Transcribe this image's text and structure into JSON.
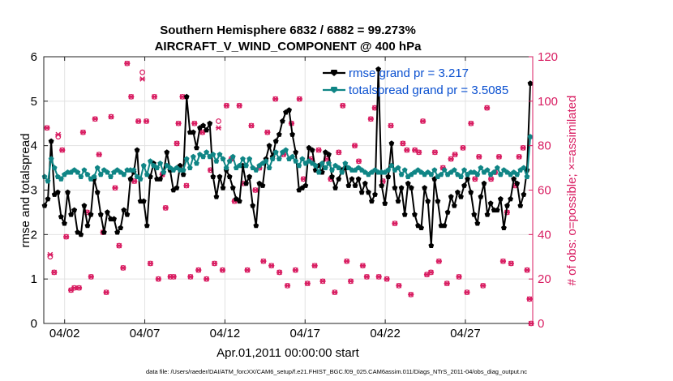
{
  "chart_data": {
    "type": "line",
    "title": "Southern Hemisphere 6832 / 6882 = 99.273%",
    "subtitle": "AIRCRAFT_V_WIND_COMPONENT @ 400 hPa",
    "xlabel": "Apr.01,2011 00:00:00 start",
    "ylabel": "rmse and totalspread",
    "y2label": "# of obs: o=possible; ×=assimilated",
    "footnote": "data file: /Users/raeder/DAI/ATM_forcXX/CAM6_setup/f.e21.FHIST_BGC.f09_025.CAM6assim.011/Diags_NTrS_2011-04/obs_diag_output.nc",
    "xlim": [
      0.7,
      31.2
    ],
    "ylim": [
      0,
      6
    ],
    "y2lim": [
      0,
      120
    ],
    "x_ticks": [
      2,
      7,
      12,
      17,
      22,
      27
    ],
    "x_tick_labels": [
      "04/02",
      "04/07",
      "04/12",
      "04/17",
      "04/22",
      "04/27"
    ],
    "y_ticks": [
      0,
      1,
      2,
      3,
      4,
      5,
      6
    ],
    "y_tick_labels": [
      "0",
      "1",
      "2",
      "3",
      "4",
      "5",
      "6"
    ],
    "y2_ticks": [
      0,
      20,
      40,
      60,
      80,
      100,
      120
    ],
    "y2_tick_labels": [
      "0",
      "20",
      "40",
      "60",
      "80",
      "100",
      "120"
    ],
    "grid": true,
    "colors": {
      "rmse": "#000000",
      "spread": "#0f8585",
      "obs": "#d81b60",
      "legend_text": "#0a50d0"
    },
    "series": [
      {
        "name": "rmse grand pr = 3.217",
        "values": [
          2.65,
          2.8,
          4.1,
          2.9,
          2.95,
          2.4,
          2.25,
          2.95,
          2.45,
          2.55,
          2.05,
          2.0,
          2.65,
          2.2,
          2.45,
          3.25,
          2.95,
          2.45,
          2.05,
          2.5,
          2.35,
          2.35,
          2.05,
          2.15,
          2.55,
          2.45,
          3.25,
          3.4,
          3.9,
          2.75,
          2.75,
          2.2,
          3.3,
          3.6,
          3.25,
          3.25,
          3.4,
          3.85,
          3.45,
          3.0,
          3.05,
          3.55,
          3.35,
          5.1,
          4.3,
          4.3,
          3.95,
          4.4,
          4.45,
          4.35,
          4.5,
          3.3,
          2.85,
          3.3,
          3.05,
          3.45,
          3.3,
          3.05,
          2.8,
          2.75,
          3.55,
          3.15,
          3.3,
          2.65,
          2.2,
          3.15,
          3.1,
          3.7,
          4.0,
          3.75,
          4.1,
          4.25,
          4.55,
          4.75,
          4.8,
          4.25,
          3.85,
          3.0,
          3.05,
          3.1,
          3.95,
          3.9,
          3.45,
          3.55,
          3.4,
          3.85,
          3.8,
          3.3,
          3.05,
          3.25,
          3.45,
          3.5,
          3.1,
          3.25,
          3.1,
          3.25,
          2.95,
          3.15,
          2.95,
          2.75,
          2.9,
          5.72,
          3.1,
          2.7,
          3.3,
          4.05,
          3.05,
          2.75,
          3.05,
          2.45,
          3.15,
          3.05,
          2.45,
          2.2,
          2.15,
          3.05,
          2.75,
          1.75,
          3.25,
          2.75,
          2.2,
          2.2,
          2.5,
          2.85,
          2.65,
          2.95,
          2.85,
          3.1,
          3.25,
          2.95,
          2.45,
          2.25,
          2.85,
          3.15,
          2.45,
          2.7,
          2.55,
          2.55,
          2.8,
          2.15,
          2.65,
          2.8,
          3.25,
          3.15,
          2.65,
          2.9,
          3.45,
          5.4
        ]
      },
      {
        "name": "totalspread grand pr = 3.5085",
        "values": [
          3.3,
          3.2,
          3.7,
          3.5,
          3.3,
          3.25,
          3.35,
          3.4,
          3.4,
          3.45,
          3.4,
          3.3,
          3.45,
          3.35,
          3.25,
          3.3,
          3.5,
          3.35,
          3.45,
          3.4,
          3.3,
          3.4,
          3.45,
          3.4,
          3.35,
          3.45,
          3.45,
          3.45,
          3.3,
          3.25,
          3.55,
          3.35,
          3.65,
          3.55,
          3.5,
          3.6,
          3.4,
          3.55,
          3.5,
          3.45,
          3.5,
          3.45,
          3.45,
          3.7,
          3.5,
          3.75,
          3.6,
          3.8,
          3.75,
          3.85,
          3.75,
          3.8,
          3.65,
          3.8,
          3.7,
          3.5,
          3.65,
          3.75,
          3.5,
          3.55,
          3.7,
          3.55,
          3.7,
          3.5,
          3.45,
          3.55,
          3.6,
          3.65,
          3.5,
          3.7,
          3.85,
          3.7,
          3.85,
          3.9,
          3.7,
          3.75,
          3.65,
          3.55,
          3.7,
          3.6,
          3.65,
          3.6,
          3.55,
          3.4,
          3.6,
          3.5,
          3.6,
          3.45,
          3.55,
          3.5,
          3.4,
          3.6,
          3.5,
          3.45,
          3.45,
          3.5,
          3.45,
          3.4,
          3.35,
          3.4,
          3.45,
          3.4,
          3.4,
          3.4,
          3.45,
          3.55,
          3.45,
          3.5,
          3.35,
          3.45,
          3.3,
          3.35,
          3.4,
          3.45,
          3.4,
          3.35,
          3.4,
          3.35,
          3.45,
          3.3,
          3.35,
          3.45,
          3.35,
          3.4,
          3.45,
          3.35,
          3.3,
          3.45,
          3.35,
          3.4,
          3.4,
          3.35,
          3.5,
          3.4,
          3.45,
          3.35,
          3.4,
          3.5,
          3.35,
          3.45,
          3.4,
          3.35,
          3.4,
          3.35,
          3.45,
          3.5,
          3.3,
          4.2
        ]
      }
    ],
    "obs_possible": [
      [
        0.9,
        88
      ],
      [
        1.1,
        30
      ],
      [
        1.35,
        23
      ],
      [
        1.6,
        84
      ],
      [
        1.85,
        78
      ],
      [
        2.1,
        39
      ],
      [
        2.4,
        15
      ],
      [
        2.6,
        16
      ],
      [
        2.9,
        16
      ],
      [
        3.15,
        86
      ],
      [
        3.4,
        50
      ],
      [
        3.65,
        21
      ],
      [
        3.9,
        92
      ],
      [
        4.15,
        76
      ],
      [
        4.4,
        41
      ],
      [
        4.6,
        14
      ],
      [
        4.9,
        93
      ],
      [
        5.15,
        61
      ],
      [
        5.4,
        35
      ],
      [
        5.65,
        25
      ],
      [
        5.9,
        117
      ],
      [
        6.15,
        102
      ],
      [
        6.35,
        64
      ],
      [
        6.6,
        91
      ],
      [
        6.85,
        113
      ],
      [
        7.1,
        91
      ],
      [
        7.35,
        27
      ],
      [
        7.6,
        102
      ],
      [
        7.85,
        20
      ],
      [
        8.1,
        67
      ],
      [
        8.3,
        52
      ],
      [
        8.6,
        21
      ],
      [
        8.8,
        21
      ],
      [
        9.0,
        81
      ],
      [
        9.1,
        90
      ],
      [
        9.35,
        102
      ],
      [
        9.6,
        62
      ],
      [
        9.85,
        21
      ],
      [
        10.1,
        90
      ],
      [
        10.35,
        24
      ],
      [
        10.6,
        86
      ],
      [
        10.85,
        20
      ],
      [
        11.1,
        69
      ],
      [
        11.35,
        27
      ],
      [
        11.6,
        91
      ],
      [
        11.85,
        24
      ],
      [
        12.1,
        98
      ],
      [
        12.4,
        74
      ],
      [
        12.6,
        55
      ],
      [
        12.9,
        98
      ],
      [
        13.15,
        63
      ],
      [
        13.4,
        24
      ],
      [
        13.65,
        89
      ],
      [
        13.9,
        60
      ],
      [
        14.15,
        70
      ],
      [
        14.4,
        28
      ],
      [
        14.65,
        86
      ],
      [
        14.9,
        26
      ],
      [
        15.15,
        101
      ],
      [
        15.4,
        23
      ],
      [
        15.65,
        76
      ],
      [
        15.9,
        17
      ],
      [
        16.15,
        90
      ],
      [
        16.4,
        24
      ],
      [
        16.65,
        101
      ],
      [
        16.9,
        65
      ],
      [
        17.15,
        18
      ],
      [
        17.4,
        74
      ],
      [
        17.6,
        26
      ],
      [
        17.85,
        78
      ],
      [
        18.1,
        19
      ],
      [
        18.35,
        74
      ],
      [
        18.6,
        65
      ],
      [
        18.85,
        14
      ],
      [
        19.1,
        77
      ],
      [
        19.35,
        98
      ],
      [
        19.6,
        28
      ],
      [
        19.85,
        19
      ],
      [
        20.1,
        80
      ],
      [
        20.35,
        73
      ],
      [
        20.6,
        26
      ],
      [
        20.85,
        21
      ],
      [
        21.1,
        92
      ],
      [
        21.35,
        97
      ],
      [
        21.6,
        21
      ],
      [
        21.85,
        64
      ],
      [
        22.1,
        20
      ],
      [
        22.35,
        89
      ],
      [
        22.6,
        45
      ],
      [
        22.85,
        17
      ],
      [
        23.1,
        81
      ],
      [
        23.35,
        78
      ],
      [
        23.6,
        13
      ],
      [
        23.85,
        78
      ],
      [
        24.1,
        77
      ],
      [
        24.35,
        91
      ],
      [
        24.6,
        22
      ],
      [
        24.85,
        23
      ],
      [
        25.1,
        77
      ],
      [
        25.35,
        28
      ],
      [
        25.6,
        70
      ],
      [
        25.85,
        18
      ],
      [
        26.1,
        74
      ],
      [
        26.35,
        76
      ],
      [
        26.6,
        21
      ],
      [
        26.85,
        79
      ],
      [
        27.1,
        14
      ],
      [
        27.35,
        90
      ],
      [
        27.6,
        65
      ],
      [
        27.85,
        75
      ],
      [
        28.1,
        17
      ],
      [
        28.35,
        97
      ],
      [
        28.6,
        65
      ],
      [
        28.85,
        68
      ],
      [
        29.1,
        75
      ],
      [
        29.35,
        28
      ],
      [
        29.6,
        50
      ],
      [
        29.85,
        27
      ],
      [
        30.1,
        62
      ],
      [
        30.35,
        75
      ],
      [
        30.6,
        79
      ],
      [
        30.85,
        24
      ],
      [
        31.0,
        11
      ],
      [
        31.1,
        0
      ]
    ],
    "obs_assimilated": [
      [
        0.9,
        88
      ],
      [
        1.1,
        31
      ],
      [
        1.35,
        23
      ],
      [
        1.6,
        85
      ],
      [
        1.85,
        78
      ],
      [
        2.1,
        39
      ],
      [
        2.4,
        15
      ],
      [
        2.6,
        16
      ],
      [
        2.9,
        16
      ],
      [
        3.15,
        86
      ],
      [
        3.4,
        50
      ],
      [
        3.65,
        21
      ],
      [
        3.9,
        92
      ],
      [
        4.15,
        76
      ],
      [
        4.4,
        41
      ],
      [
        4.6,
        14
      ],
      [
        4.9,
        93
      ],
      [
        5.15,
        61
      ],
      [
        5.4,
        35
      ],
      [
        5.65,
        25
      ],
      [
        5.9,
        117
      ],
      [
        6.15,
        102
      ],
      [
        6.35,
        64
      ],
      [
        6.6,
        91
      ],
      [
        6.85,
        110
      ],
      [
        7.1,
        91
      ],
      [
        7.35,
        27
      ],
      [
        7.6,
        102
      ],
      [
        7.85,
        20
      ],
      [
        8.1,
        67
      ],
      [
        8.3,
        52
      ],
      [
        8.6,
        21
      ],
      [
        8.8,
        21
      ],
      [
        9.0,
        81
      ],
      [
        9.1,
        90
      ],
      [
        9.35,
        102
      ],
      [
        9.6,
        62
      ],
      [
        9.85,
        21
      ],
      [
        10.1,
        90
      ],
      [
        10.35,
        24
      ],
      [
        10.6,
        86
      ],
      [
        10.85,
        20
      ],
      [
        11.1,
        69
      ],
      [
        11.35,
        27
      ],
      [
        11.6,
        88
      ],
      [
        11.85,
        24
      ],
      [
        12.1,
        98
      ],
      [
        12.4,
        74
      ],
      [
        12.6,
        55
      ],
      [
        12.9,
        98
      ],
      [
        13.15,
        63
      ],
      [
        13.4,
        24
      ],
      [
        13.65,
        89
      ],
      [
        13.9,
        60
      ],
      [
        14.15,
        70
      ],
      [
        14.4,
        28
      ],
      [
        14.65,
        86
      ],
      [
        14.9,
        26
      ],
      [
        15.15,
        101
      ],
      [
        15.4,
        23
      ],
      [
        15.65,
        76
      ],
      [
        15.9,
        17
      ],
      [
        16.15,
        90
      ],
      [
        16.4,
        24
      ],
      [
        16.65,
        101
      ],
      [
        16.9,
        65
      ],
      [
        17.15,
        18
      ],
      [
        17.4,
        74
      ],
      [
        17.6,
        26
      ],
      [
        17.85,
        78
      ],
      [
        18.1,
        19
      ],
      [
        18.35,
        74
      ],
      [
        18.6,
        65
      ],
      [
        18.85,
        14
      ],
      [
        19.1,
        77
      ],
      [
        19.35,
        98
      ],
      [
        19.6,
        28
      ],
      [
        19.85,
        19
      ],
      [
        20.1,
        80
      ],
      [
        20.35,
        73
      ],
      [
        20.6,
        26
      ],
      [
        20.85,
        21
      ],
      [
        21.1,
        92
      ],
      [
        21.35,
        97
      ],
      [
        21.6,
        21
      ],
      [
        21.85,
        64
      ],
      [
        22.1,
        20
      ],
      [
        22.35,
        89
      ],
      [
        22.6,
        45
      ],
      [
        22.85,
        17
      ],
      [
        23.1,
        81
      ],
      [
        23.35,
        78
      ],
      [
        23.6,
        13
      ],
      [
        23.85,
        78
      ],
      [
        24.1,
        77
      ],
      [
        24.35,
        91
      ],
      [
        24.6,
        22
      ],
      [
        24.85,
        23
      ],
      [
        25.1,
        77
      ],
      [
        25.35,
        28
      ],
      [
        25.6,
        70
      ],
      [
        25.85,
        18
      ],
      [
        26.1,
        74
      ],
      [
        26.35,
        76
      ],
      [
        26.6,
        21
      ],
      [
        26.85,
        79
      ],
      [
        27.1,
        14
      ],
      [
        27.35,
        90
      ],
      [
        27.6,
        65
      ],
      [
        27.85,
        75
      ],
      [
        28.1,
        17
      ],
      [
        28.35,
        97
      ],
      [
        28.6,
        65
      ],
      [
        28.85,
        68
      ],
      [
        29.1,
        75
      ],
      [
        29.35,
        28
      ],
      [
        29.6,
        50
      ],
      [
        29.85,
        27
      ],
      [
        30.1,
        62
      ],
      [
        30.35,
        75
      ],
      [
        30.6,
        79
      ],
      [
        30.85,
        24
      ],
      [
        31.0,
        11
      ],
      [
        31.1,
        0
      ]
    ]
  }
}
